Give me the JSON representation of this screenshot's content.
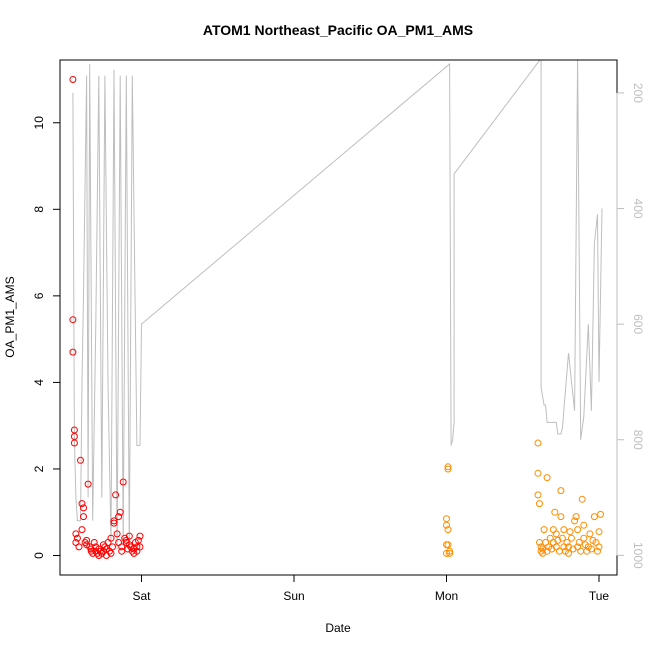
{
  "chart_data": {
    "type": "scatter",
    "title": "ATOM1 Northeast_Pacific OA_PM1_AMS",
    "xlabel": "Date",
    "ylabel": "OA_PM1_AMS",
    "x_tick_labels": [
      "Sat",
      "Sun",
      "Mon",
      "Tue"
    ],
    "x_tick_positions_days": [
      1,
      2,
      3,
      4
    ],
    "xlim_days": [
      0.5,
      4.1
    ],
    "ylim": [
      -0.45,
      11.45
    ],
    "y_ticks": [
      0,
      2,
      4,
      6,
      8,
      10
    ],
    "y_tick_labels": [
      "0",
      "2",
      "4",
      "6",
      "8",
      "10"
    ],
    "right_axis": {
      "ylim": [
        1034,
        143
      ],
      "ticks": [
        200,
        400,
        600,
        800,
        1000
      ],
      "tick_labels": [
        "200",
        "400",
        "600",
        "800",
        "1000"
      ],
      "color": "#bebebe",
      "reversed": true
    },
    "grid": false,
    "legend": "none",
    "colors": {
      "flight1": "#ff0000",
      "flight2": "#ff8c00",
      "pressure_line": "#bebebe",
      "axis": "#000000"
    },
    "series": [
      {
        "color": "#ff0000",
        "marker": "open-circle",
        "x": [
          0.55,
          0.55,
          0.55,
          0.56,
          0.56,
          0.56,
          0.57,
          0.57,
          0.58,
          0.59,
          0.6,
          0.61,
          0.61,
          0.62,
          0.62,
          0.63,
          0.64,
          0.64,
          0.65,
          0.66,
          0.67,
          0.67,
          0.68,
          0.69,
          0.7,
          0.7,
          0.71,
          0.72,
          0.72,
          0.73,
          0.74,
          0.75,
          0.75,
          0.76,
          0.77,
          0.77,
          0.78,
          0.79,
          0.8,
          0.8,
          0.81,
          0.82,
          0.82,
          0.83,
          0.84,
          0.85,
          0.85,
          0.86,
          0.87,
          0.87,
          0.88,
          0.89,
          0.9,
          0.9,
          0.91,
          0.92,
          0.92,
          0.93,
          0.94,
          0.95,
          0.95,
          0.96,
          0.97,
          0.97,
          0.98,
          0.99,
          0.99
        ],
        "y": [
          11.0,
          5.45,
          4.7,
          2.9,
          2.75,
          2.6,
          0.5,
          0.3,
          0.4,
          0.2,
          2.2,
          0.6,
          1.2,
          1.1,
          0.9,
          0.3,
          0.35,
          0.25,
          1.65,
          0.2,
          0.15,
          0.1,
          0.05,
          0.3,
          0.1,
          0.2,
          0.05,
          0.0,
          0.15,
          0.1,
          0.05,
          0.25,
          0.1,
          0.2,
          0.0,
          0.15,
          0.3,
          0.1,
          0.05,
          0.4,
          0.2,
          0.75,
          0.8,
          1.4,
          0.5,
          0.3,
          0.9,
          1.0,
          0.2,
          0.1,
          1.7,
          0.4,
          0.3,
          0.35,
          0.15,
          0.25,
          0.45,
          0.2,
          0.1,
          0.05,
          0.15,
          0.3,
          0.2,
          0.1,
          0.35,
          0.45,
          0.2
        ]
      },
      {
        "color": "#ff8c00",
        "marker": "open-circle",
        "x": [
          3.0,
          3.0,
          3.0,
          3.0,
          3.01,
          3.01,
          3.01,
          3.01,
          3.02,
          3.02,
          3.6,
          3.6,
          3.6,
          3.61,
          3.61,
          3.62,
          3.62,
          3.63,
          3.63,
          3.64,
          3.65,
          3.66,
          3.66,
          3.67,
          3.68,
          3.69,
          3.7,
          3.7,
          3.71,
          3.72,
          3.72,
          3.73,
          3.74,
          3.75,
          3.75,
          3.76,
          3.77,
          3.77,
          3.78,
          3.79,
          3.8,
          3.8,
          3.81,
          3.82,
          3.83,
          3.84,
          3.85,
          3.86,
          3.86,
          3.87,
          3.88,
          3.89,
          3.9,
          3.9,
          3.91,
          3.92,
          3.93,
          3.94,
          3.95,
          3.96,
          3.97,
          3.98,
          3.99,
          4.0,
          4.0,
          4.01
        ],
        "y": [
          0.85,
          0.7,
          0.25,
          0.05,
          2.05,
          2.0,
          0.6,
          0.25,
          0.1,
          0.05,
          2.6,
          1.9,
          1.4,
          1.2,
          0.3,
          0.1,
          0.2,
          0.05,
          0.15,
          0.6,
          0.3,
          1.8,
          0.1,
          0.2,
          0.4,
          0.15,
          0.3,
          0.6,
          1.0,
          0.5,
          0.2,
          0.35,
          0.1,
          1.5,
          0.9,
          0.4,
          0.2,
          0.6,
          0.1,
          0.3,
          0.05,
          0.2,
          0.55,
          0.4,
          0.15,
          0.8,
          0.9,
          0.6,
          0.2,
          0.3,
          0.1,
          1.3,
          0.7,
          0.4,
          0.25,
          0.1,
          0.2,
          0.5,
          0.15,
          0.35,
          0.9,
          0.3,
          0.1,
          0.55,
          0.2,
          0.95
        ]
      }
    ],
    "pressure_line": {
      "color": "#bebebe",
      "x": [
        0.55,
        0.56,
        0.57,
        0.58,
        0.6,
        0.61,
        0.62,
        0.64,
        0.65,
        0.66,
        0.68,
        0.7,
        0.72,
        0.74,
        0.76,
        0.78,
        0.8,
        0.82,
        0.84,
        0.86,
        0.88,
        0.9,
        0.92,
        0.94,
        0.97,
        0.99,
        1.0,
        3.02,
        3.03,
        3.04,
        3.05,
        3.05,
        3.62,
        3.62,
        3.64,
        3.65,
        3.66,
        3.72,
        3.73,
        3.75,
        3.76,
        3.8,
        3.82,
        3.84,
        3.86,
        3.88,
        3.9,
        3.93,
        3.95,
        3.97,
        3.99,
        4.0,
        4.02
      ],
      "y": [
        200,
        800,
        900,
        940,
        940,
        700,
        550,
        170,
        900,
        150,
        940,
        600,
        170,
        900,
        170,
        700,
        980,
        160,
        990,
        170,
        980,
        170,
        990,
        170,
        810,
        810,
        600,
        150,
        810,
        800,
        770,
        340,
        140,
        710,
        740,
        740,
        770,
        770,
        790,
        790,
        780,
        650,
        700,
        750,
        140,
        800,
        760,
        600,
        750,
        460,
        410,
        700,
        400
      ]
    }
  }
}
